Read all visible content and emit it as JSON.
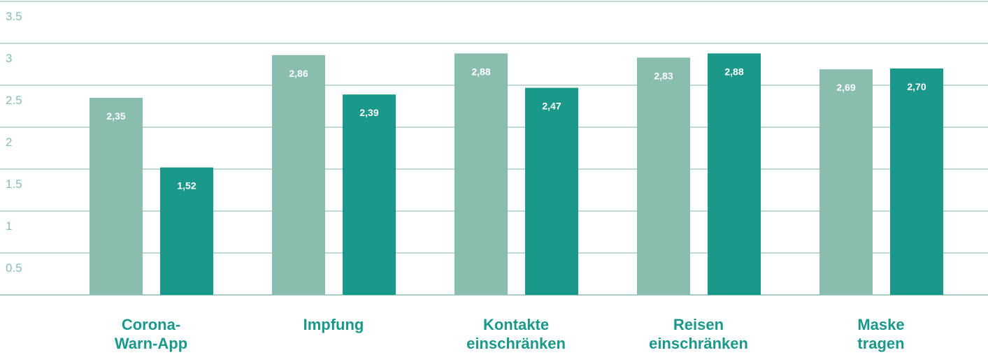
{
  "chart_data": {
    "type": "bar",
    "categories": [
      "Corona-\nWarn-App",
      "Impfung",
      "Kontakte\neinschränken",
      "Reisen\neinschränken",
      "Maske\ntragen"
    ],
    "series": [
      {
        "color": "#88bdb0",
        "values": [
          2.35,
          2.86,
          2.88,
          2.83,
          2.69
        ],
        "value_labels": [
          "2,35",
          "2,86",
          "2,88",
          "2,83",
          "2,69"
        ]
      },
      {
        "color": "#1a998a",
        "values": [
          1.52,
          2.39,
          2.47,
          2.88,
          2.7
        ],
        "value_labels": [
          "1,52",
          "2,39",
          "2,47",
          "2,88",
          "2,70"
        ]
      }
    ],
    "ylim": [
      0,
      3.5
    ],
    "yticks": [
      0.5,
      1,
      1.5,
      2,
      2.5,
      3,
      3.5
    ],
    "grid": true
  }
}
